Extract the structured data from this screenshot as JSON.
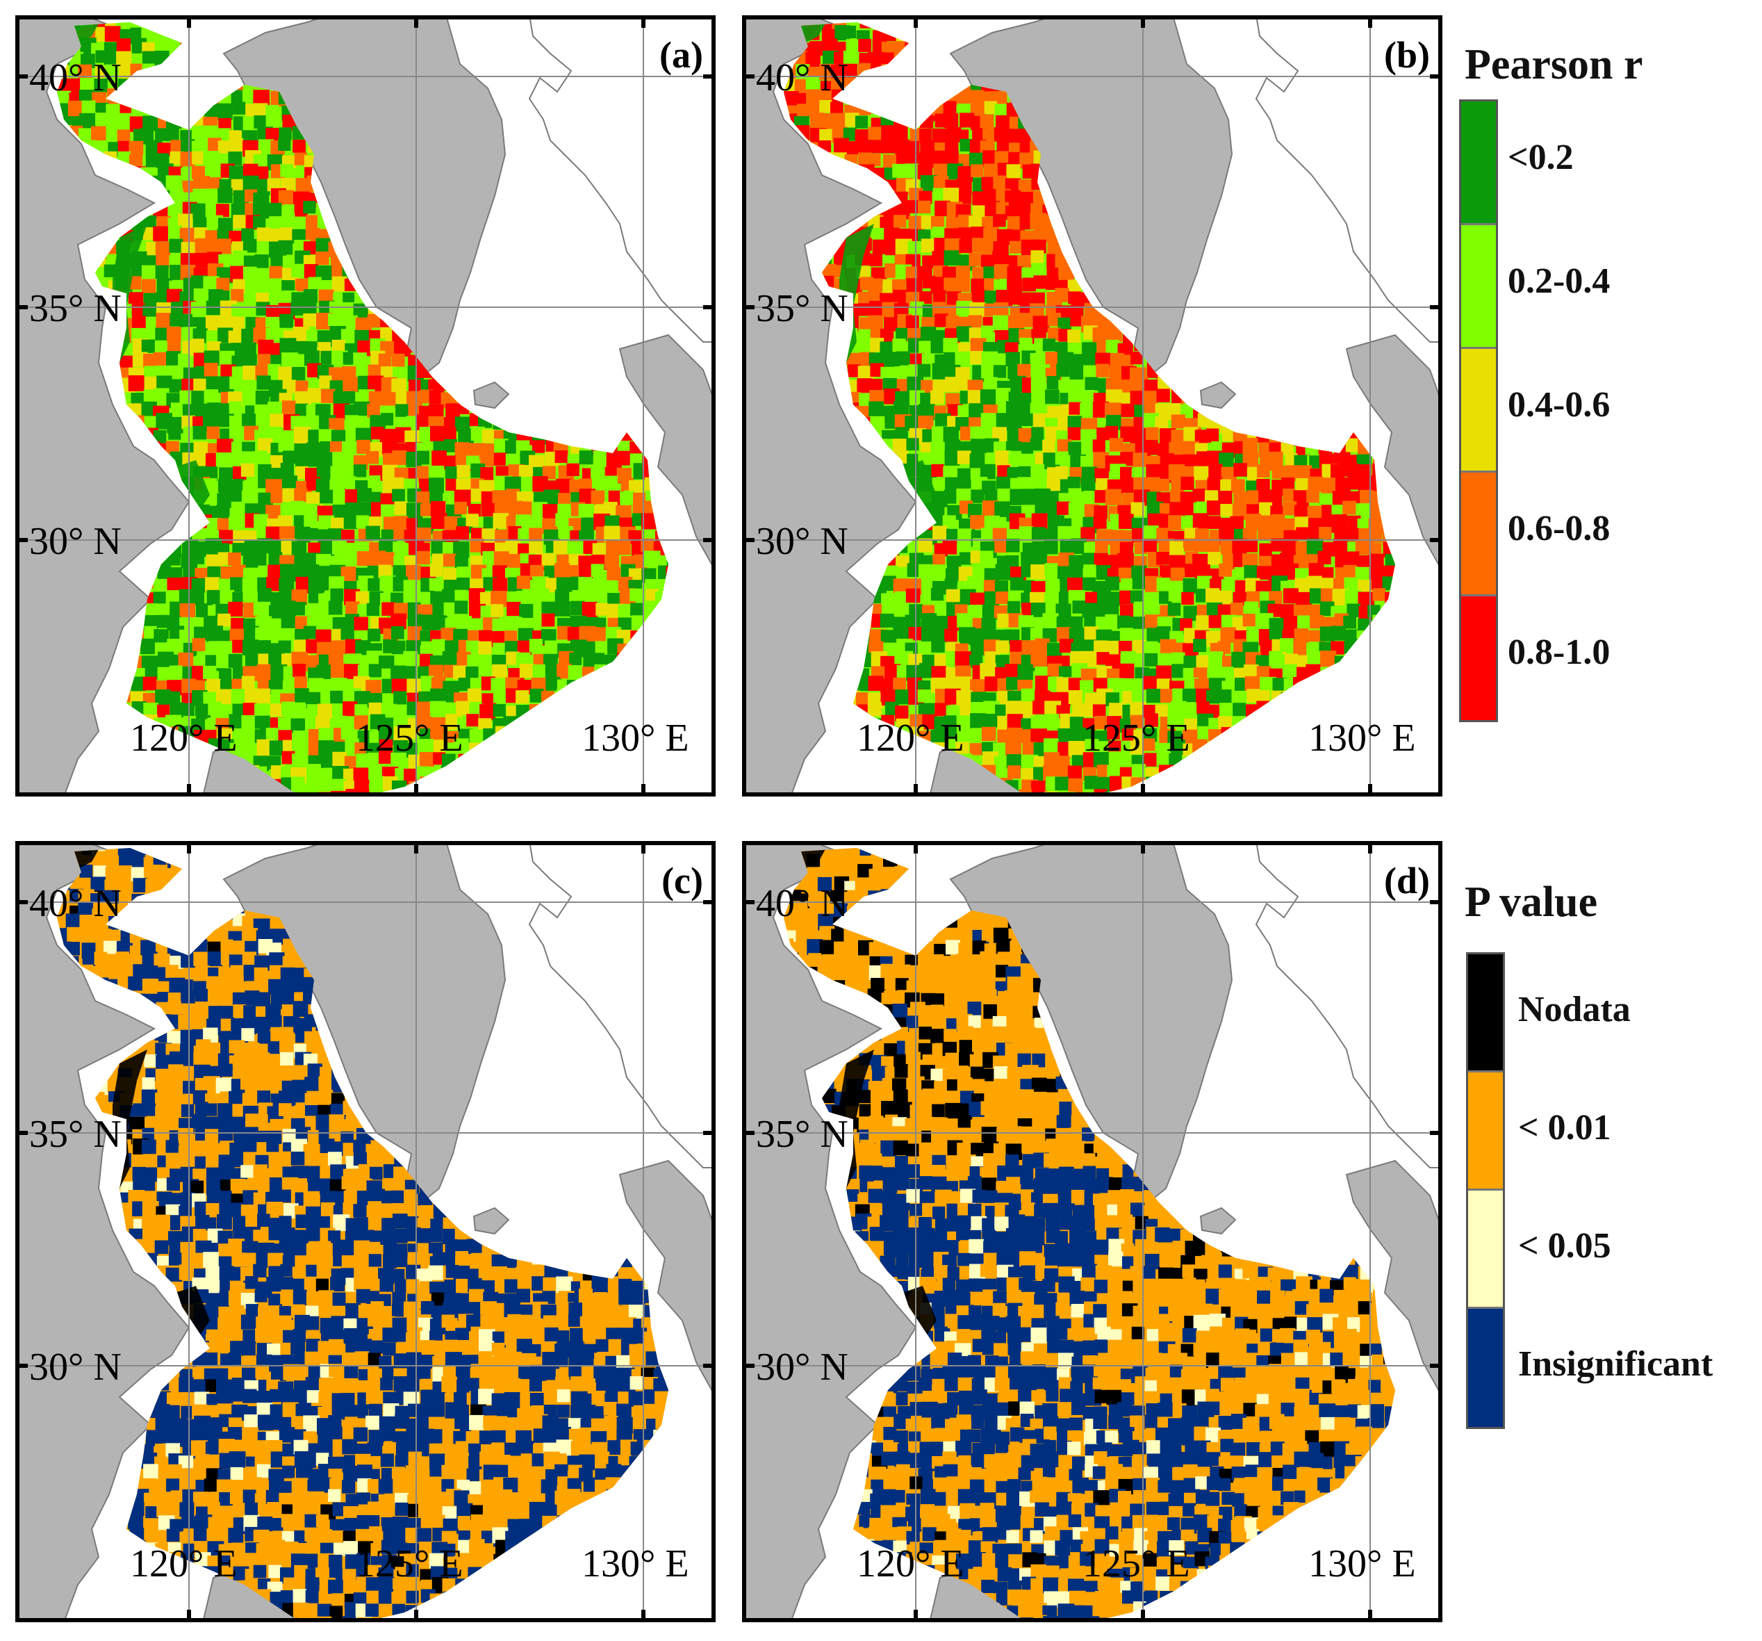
{
  "panels": [
    {
      "id": "a",
      "label": "(a)",
      "variable": "pearson",
      "variant": "a"
    },
    {
      "id": "b",
      "label": "(b)",
      "variable": "pearson",
      "variant": "b"
    },
    {
      "id": "c",
      "label": "(c)",
      "variable": "pvalue",
      "variant": "a"
    },
    {
      "id": "d",
      "label": "(d)",
      "variable": "pvalue",
      "variant": "b"
    }
  ],
  "axes": {
    "lat_labels": [
      "40° N",
      "35° N",
      "30° N"
    ],
    "lon_labels": [
      "120° E",
      "125° E",
      "130° E"
    ]
  },
  "legends": {
    "pearson": {
      "title": "Pearson r",
      "items": [
        {
          "label": "<0.2",
          "color": "#0a9a0a"
        },
        {
          "label": "0.2-0.4",
          "color": "#7fff00"
        },
        {
          "label": "0.4-0.6",
          "color": "#e8e000"
        },
        {
          "label": "0.6-0.8",
          "color": "#ff6a00"
        },
        {
          "label": "0.8-1.0",
          "color": "#ff0000"
        }
      ]
    },
    "pvalue": {
      "title": "P value",
      "items": [
        {
          "label": "Nodata",
          "color": "#000000"
        },
        {
          "label": "< 0.01",
          "color": "#ffa500"
        },
        {
          "label": "< 0.05",
          "color": "#ffffc0"
        },
        {
          "label": "Insignificant",
          "color": "#002f80"
        }
      ]
    }
  },
  "colors": {
    "land": "#b4b4b4",
    "land_outline": "#7a7a7a",
    "background": "#ffffff",
    "frame": "#000000",
    "grid": "#888888"
  }
}
